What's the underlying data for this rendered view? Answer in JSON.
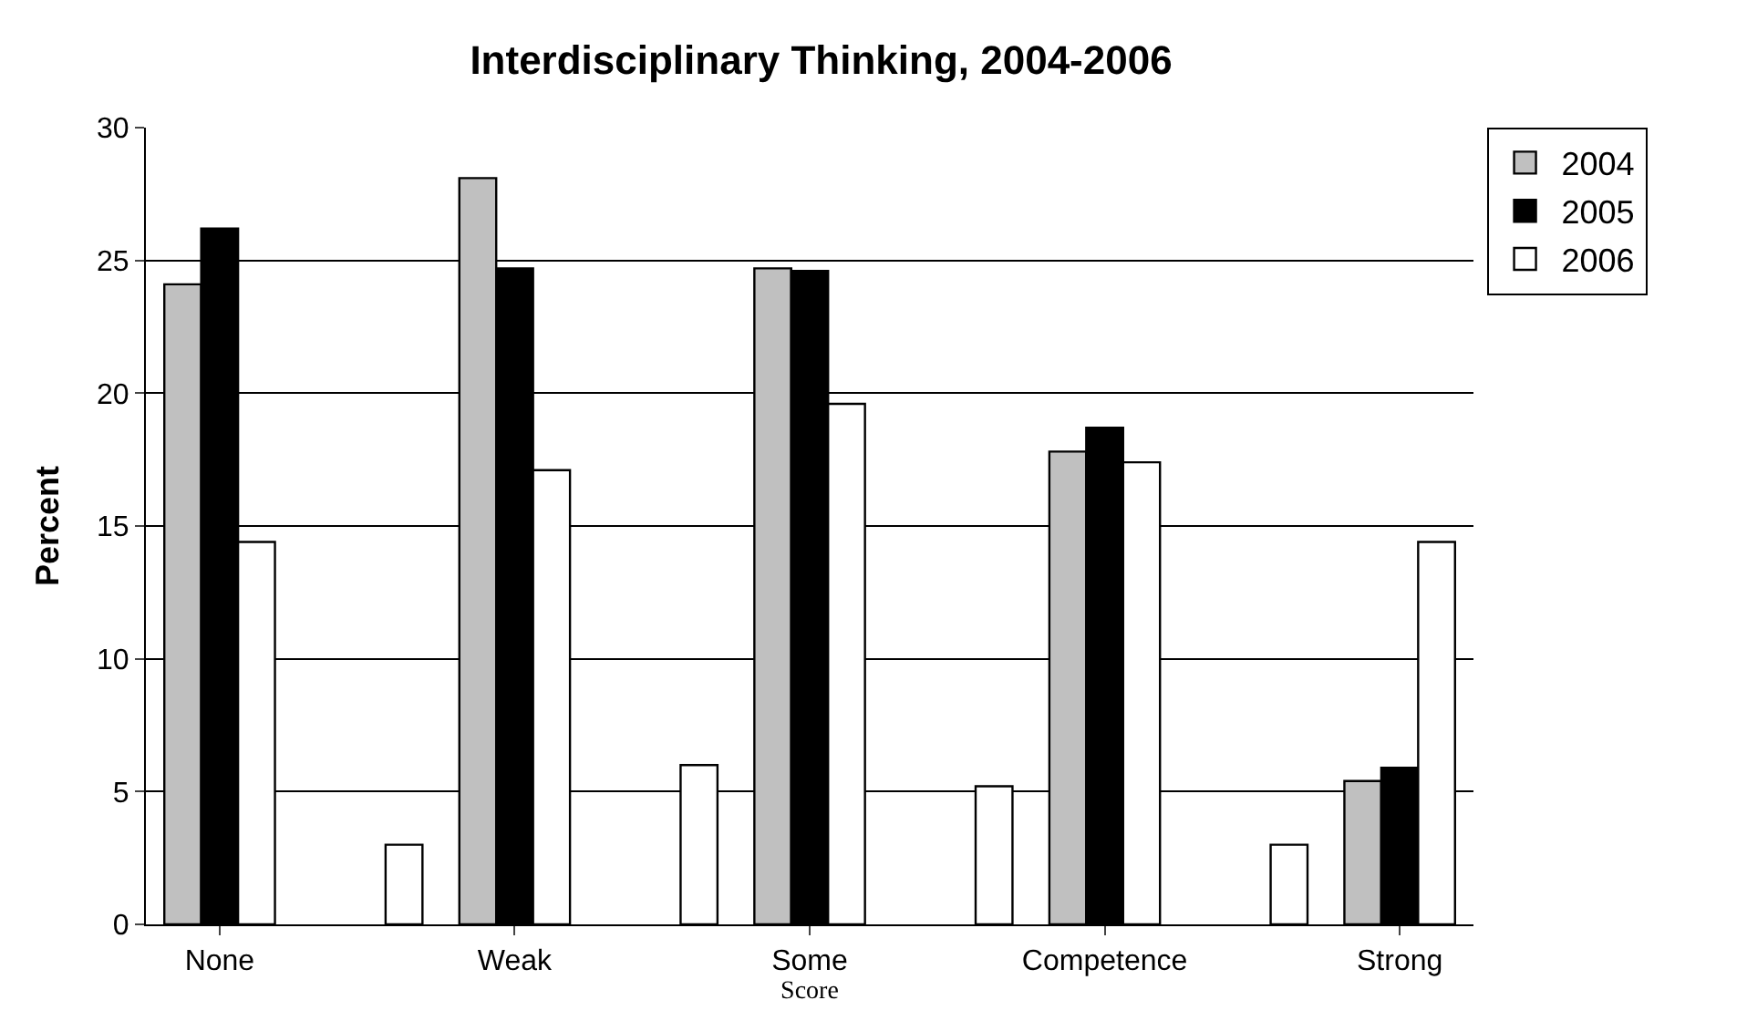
{
  "chart_data": {
    "type": "bar",
    "title": "Interdisciplinary Thinking, 2004-2006",
    "xlabel": "Score",
    "ylabel": "Percent",
    "categories": [
      "None",
      null,
      "Weak",
      null,
      "Some",
      null,
      "Competence",
      null,
      "Strong"
    ],
    "series": [
      {
        "name": "2004",
        "color": "#c0c0c0",
        "values": [
          24.1,
          null,
          28.1,
          null,
          24.7,
          null,
          17.8,
          null,
          5.4
        ]
      },
      {
        "name": "2005",
        "color": "#000000",
        "values": [
          26.2,
          null,
          24.7,
          null,
          24.6,
          null,
          18.7,
          null,
          5.9
        ]
      },
      {
        "name": "2006",
        "color": "#ffffff",
        "values": [
          14.4,
          3.0,
          17.1,
          6.0,
          19.6,
          5.2,
          17.4,
          3.0,
          14.4
        ]
      }
    ],
    "ylim": [
      0,
      30
    ],
    "yticks": [
      0,
      5,
      10,
      15,
      20,
      25,
      30
    ],
    "grid": "y",
    "legend": "right"
  }
}
